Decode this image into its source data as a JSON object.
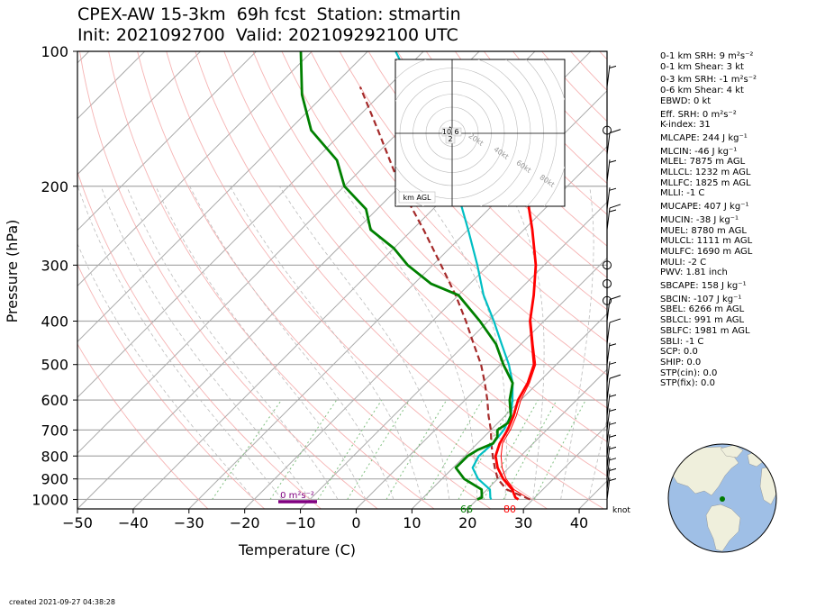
{
  "title": {
    "line1": "CPEX-AW 15-3km  69h fcst  Station: stmartin",
    "line2": "Init: 2021092700  Valid: 202109292100 UTC"
  },
  "created": "created 2021-09-27 04:38:28",
  "indices": [
    {
      "key": "sfc1_srh",
      "label": "0-1 km SRH: 9 m²s⁻²"
    },
    {
      "key": "sfc1_shear",
      "label": "0-1 km Shear: 3 kt"
    },
    {
      "key": "sfc3_srh",
      "label": "0-3 km SRH: -1 m²s⁻²"
    },
    {
      "key": "sfc6_shear",
      "label": "0-6 km Shear: 4 kt"
    },
    {
      "key": "ebwd",
      "label": "EBWD: 0 kt"
    },
    {
      "key": "eff_srh",
      "label": "Eff. SRH: 0 m²s⁻²"
    },
    {
      "key": "kindex",
      "label": "K-index: 31"
    },
    {
      "key": "mlcape",
      "label": "MLCAPE: 244 J kg⁻¹"
    },
    {
      "key": "mlcin",
      "label": "MLCIN: -46 J kg⁻¹"
    },
    {
      "key": "mlel",
      "label": "MLEL: 7875 m AGL"
    },
    {
      "key": "mllcl",
      "label": "MLLCL: 1232 m AGL"
    },
    {
      "key": "mllfc",
      "label": "MLLFC: 1825 m AGL"
    },
    {
      "key": "mlli",
      "label": "MLLI: -1 C"
    },
    {
      "key": "mucape",
      "label": "MUCAPE: 407 J kg⁻¹"
    },
    {
      "key": "mucin",
      "label": "MUCIN: -38 J kg⁻¹"
    },
    {
      "key": "muel",
      "label": "MUEL: 8780 m AGL"
    },
    {
      "key": "mulcl",
      "label": "MULCL: 1111 m AGL"
    },
    {
      "key": "mulfc",
      "label": "MULFC: 1690 m AGL"
    },
    {
      "key": "muli",
      "label": "MULI: -2 C"
    },
    {
      "key": "pwv",
      "label": "PWV: 1.81 inch"
    },
    {
      "key": "sbcape",
      "label": "SBCAPE: 158 J kg⁻¹"
    },
    {
      "key": "sbcin",
      "label": "SBCIN: -107 J kg⁻¹"
    },
    {
      "key": "sbel",
      "label": "SBEL: 6266 m AGL"
    },
    {
      "key": "sblcl",
      "label": "SBLCL: 991 m AGL"
    },
    {
      "key": "sblfc",
      "label": "SBLFC: 1981 m AGL"
    },
    {
      "key": "sbli",
      "label": "SBLI: -1 C"
    },
    {
      "key": "scp",
      "label": "SCP: 0.0"
    },
    {
      "key": "ship",
      "label": "SHIP: 0.0"
    },
    {
      "key": "stp_cin",
      "label": "STP(cin): 0.0"
    },
    {
      "key": "stp_fix",
      "label": "STP(fix): 0.0"
    }
  ],
  "chart_data": {
    "type": "line",
    "subtype": "skew-t log-p",
    "xlabel": "Temperature (C)",
    "ylabel": "Pressure (hPa)",
    "xlim": [
      -50,
      45
    ],
    "ylim": [
      1050,
      100
    ],
    "y_scale": "log",
    "x_ticks": [
      "−50",
      "−40",
      "−30",
      "−20",
      "−10",
      "0",
      "10",
      "20",
      "30",
      "40"
    ],
    "x_tick_values": [
      -50,
      -40,
      -30,
      -20,
      -10,
      0,
      10,
      20,
      30,
      40
    ],
    "y_ticks": [
      "100",
      "200",
      "300",
      "400",
      "500",
      "600",
      "700",
      "800",
      "900",
      "1000"
    ],
    "y_tick_values": [
      100,
      200,
      300,
      400,
      500,
      600,
      700,
      800,
      900,
      1000
    ],
    "wind_unit_label": "knot",
    "surface_labels": {
      "temperature": "80",
      "dewpoint": "66"
    },
    "srh_label": "0 m²s⁻²",
    "colors": {
      "temperature": "#ff0000",
      "dewpoint": "#008000",
      "wetbulb": "#00bfc4",
      "parcel": "#a52a2a",
      "virtual_temp": "#ff0000",
      "isobar": "#aaaaaa",
      "isotherm": "#aaaaaa",
      "dry_adiabat": "#f4a0a0",
      "moist_adiabat": "#bbbbbb",
      "mixing_ratio": "#7fbf7f",
      "srh_bar": "#800080"
    },
    "series": [
      {
        "key": "temperature",
        "pressure": [
          1000,
          990,
          950,
          900,
          850,
          800,
          750,
          700,
          650,
          600,
          550,
          500,
          450,
          400,
          350,
          300,
          250,
          200
        ],
        "values": [
          27.4,
          26.5,
          24.5,
          21.0,
          18.0,
          15.5,
          14.0,
          13.0,
          11.5,
          9.5,
          8.2,
          6.0,
          2.0,
          -2.5,
          -6.5,
          -11.5,
          -18.5,
          -27.5
        ]
      },
      {
        "key": "dewpoint",
        "pressure": [
          1000,
          990,
          950,
          900,
          850,
          800,
          775,
          750,
          725,
          700,
          675,
          650,
          600,
          550,
          500,
          450,
          400,
          350,
          330,
          300,
          275,
          250,
          225,
          200,
          175,
          150,
          125,
          100
        ],
        "values": [
          20.0,
          20.5,
          19.0,
          14.0,
          10.5,
          10.5,
          11.2,
          12.8,
          12.4,
          11.2,
          11.8,
          11.0,
          8.0,
          5.5,
          0.5,
          -4.5,
          -11.5,
          -20.0,
          -27.0,
          -34.5,
          -40.0,
          -47.5,
          -52.0,
          -60.0,
          -66.0,
          -76.0,
          -84.0,
          -92.0
        ]
      },
      {
        "key": "wetbulb",
        "pressure": [
          1000,
          990,
          950,
          900,
          850,
          800,
          750,
          700,
          650,
          600,
          550,
          500,
          450,
          400,
          350,
          300,
          250,
          200,
          150,
          100
        ],
        "values": [
          22.5,
          22.0,
          20.5,
          16.5,
          13.5,
          12.5,
          12.8,
          12.3,
          11.0,
          8.5,
          5.5,
          1.5,
          -3.5,
          -9.0,
          -15.5,
          -22.0,
          -30.0,
          -40.0,
          -54.0,
          -75.0
        ]
      },
      {
        "key": "parcel",
        "pressure": [
          1000,
          950,
          900,
          850,
          800,
          750,
          700,
          650,
          600,
          550,
          500,
          450,
          400,
          350,
          300,
          250,
          200,
          150,
          120
        ],
        "values": [
          29.5,
          23.5,
          20.0,
          17.5,
          15.0,
          12.5,
          10.0,
          7.0,
          4.0,
          0.5,
          -3.5,
          -8.5,
          -14.0,
          -20.5,
          -28.5,
          -38.0,
          -50.0,
          -64.0,
          -75.0
        ]
      },
      {
        "key": "virtual_temp",
        "pressure": [
          1000,
          950,
          900,
          850,
          800,
          750,
          700,
          650,
          600,
          550,
          500,
          450,
          400
        ],
        "values": [
          29.5,
          24.8,
          21.5,
          18.8,
          16.5,
          14.5,
          13.5,
          12.0,
          10.0,
          8.5,
          6.3,
          2.2,
          -2.3
        ]
      }
    ],
    "wind_barbs": [
      {
        "pressure": 1000,
        "type": "barb",
        "speed": 5
      },
      {
        "pressure": 950,
        "type": "barb",
        "speed": 5
      },
      {
        "pressure": 900,
        "type": "barb",
        "speed": 5
      },
      {
        "pressure": 850,
        "type": "barb",
        "speed": 5
      },
      {
        "pressure": 800,
        "type": "barb",
        "speed": 5
      },
      {
        "pressure": 750,
        "type": "barb",
        "speed": 5
      },
      {
        "pressure": 700,
        "type": "barb",
        "speed": 5
      },
      {
        "pressure": 650,
        "type": "barb",
        "speed": 5
      },
      {
        "pressure": 600,
        "type": "barb",
        "speed": 10
      },
      {
        "pressure": 550,
        "type": "barb",
        "speed": 5
      },
      {
        "pressure": 500,
        "type": "barb",
        "speed": 5
      },
      {
        "pressure": 450,
        "type": "barb",
        "speed": 10
      },
      {
        "pressure": 400,
        "type": "barb",
        "speed": 10
      },
      {
        "pressure": 360,
        "type": "calm"
      },
      {
        "pressure": 330,
        "type": "calm"
      },
      {
        "pressure": 300,
        "type": "calm"
      },
      {
        "pressure": 250,
        "type": "barb",
        "speed": 15
      },
      {
        "pressure": 225,
        "type": "barb",
        "speed": 5
      },
      {
        "pressure": 195,
        "type": "barb",
        "speed": 5
      },
      {
        "pressure": 170,
        "type": "barb",
        "speed": 10
      },
      {
        "pressure": 150,
        "type": "calm"
      },
      {
        "pressure": 120,
        "type": "barb",
        "speed": 5
      }
    ],
    "hodograph": {
      "ring_labels": [
        "20kt",
        "40kt",
        "60kt",
        "80kt"
      ],
      "height_labels": [
        "10",
        "6",
        "2"
      ],
      "units_label": "km AGL"
    },
    "globe": {
      "station_marker": "St. Martin"
    }
  }
}
